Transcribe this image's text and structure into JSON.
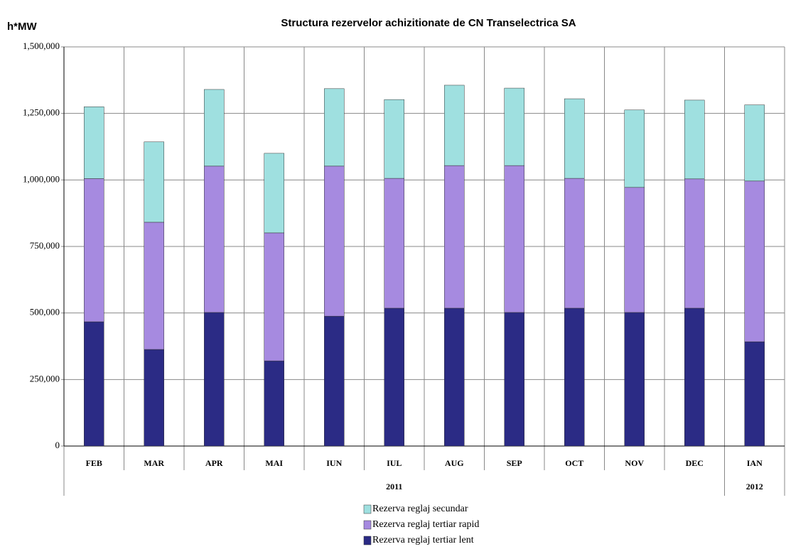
{
  "chart_data": {
    "type": "stacked-bar",
    "title": "Structura rezervelor achizitionate de CN Transelectrica SA",
    "y_label": "h*MW",
    "categories": [
      "FEB",
      "MAR",
      "APR",
      "MAI",
      "IUN",
      "IUL",
      "AUG",
      "SEP",
      "OCT",
      "NOV",
      "DEC",
      "IAN"
    ],
    "category_groups": [
      "2011",
      "2011",
      "2011",
      "2011",
      "2011",
      "2011",
      "2011",
      "2011",
      "2011",
      "2011",
      "2011",
      "2012"
    ],
    "series": [
      {
        "name": "Rezerva reglaj tertiar lent",
        "color": "#2b2b85",
        "values": [
          467000,
          363000,
          502000,
          320000,
          488000,
          518000,
          518000,
          502000,
          518000,
          502000,
          518000,
          392000
        ]
      },
      {
        "name": "Rezerva reglaj tertiar rapid",
        "color": "#a68ae0",
        "values": [
          538000,
          478000,
          550000,
          481000,
          564000,
          488000,
          536000,
          552000,
          488000,
          470000,
          486000,
          604000
        ]
      },
      {
        "name": "Rezerva reglaj secundar",
        "color": "#9fe0e0",
        "values": [
          270000,
          302000,
          288000,
          299000,
          291000,
          296000,
          302000,
          291000,
          299000,
          291000,
          296000,
          286000
        ]
      }
    ],
    "ylim": [
      0,
      1500000
    ],
    "yticks": [
      0,
      {
        "value": 250000,
        "label": "250,000"
      },
      {
        "value": 500000,
        "label": "500,000"
      },
      {
        "value": 750000,
        "label": "750,000"
      },
      {
        "value": 1000000,
        "label": "1,000,000"
      },
      {
        "value": 1250000,
        "label": "1,250,000"
      },
      {
        "value": 1500000,
        "label": "1,500,000"
      }
    ],
    "grid": true
  }
}
